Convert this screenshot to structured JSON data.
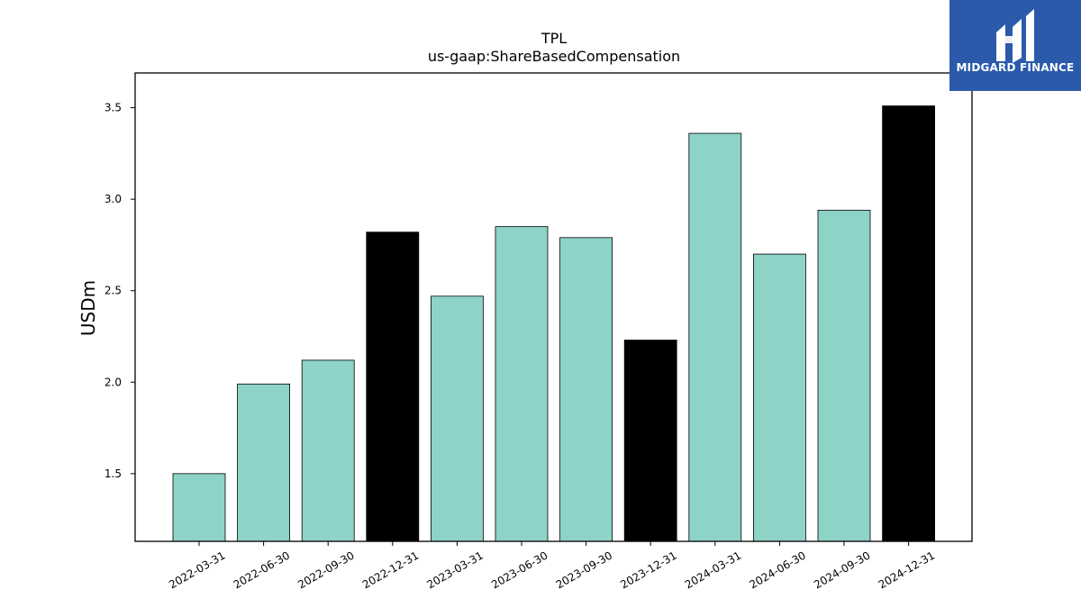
{
  "logo": {
    "text": "MIDGARD FINANCE",
    "bg_color": "#2b5aab"
  },
  "chart_data": {
    "type": "bar",
    "title": "TPL",
    "subtitle": "us-gaap:ShareBasedCompensation",
    "xlabel": "",
    "ylabel": "USDm",
    "ylim": [
      1.13,
      3.69
    ],
    "yticks": [
      1.5,
      2.0,
      2.5,
      3.0,
      3.5
    ],
    "ytick_labels": [
      "1.5",
      "2.0",
      "2.5",
      "3.0",
      "3.5"
    ],
    "grid": false,
    "categories": [
      "2022-03-31",
      "2022-06-30",
      "2022-09-30",
      "2022-12-31",
      "2023-03-31",
      "2023-06-30",
      "2023-09-30",
      "2023-12-31",
      "2024-03-31",
      "2024-06-30",
      "2024-09-30",
      "2024-12-31"
    ],
    "values": [
      1.5,
      1.99,
      2.12,
      2.82,
      2.47,
      2.85,
      2.79,
      2.23,
      3.36,
      2.7,
      2.94,
      3.51
    ],
    "bar_colors": [
      "#8dd3c7",
      "#8dd3c7",
      "#8dd3c7",
      "#000000",
      "#8dd3c7",
      "#8dd3c7",
      "#8dd3c7",
      "#000000",
      "#8dd3c7",
      "#8dd3c7",
      "#8dd3c7",
      "#000000"
    ]
  }
}
